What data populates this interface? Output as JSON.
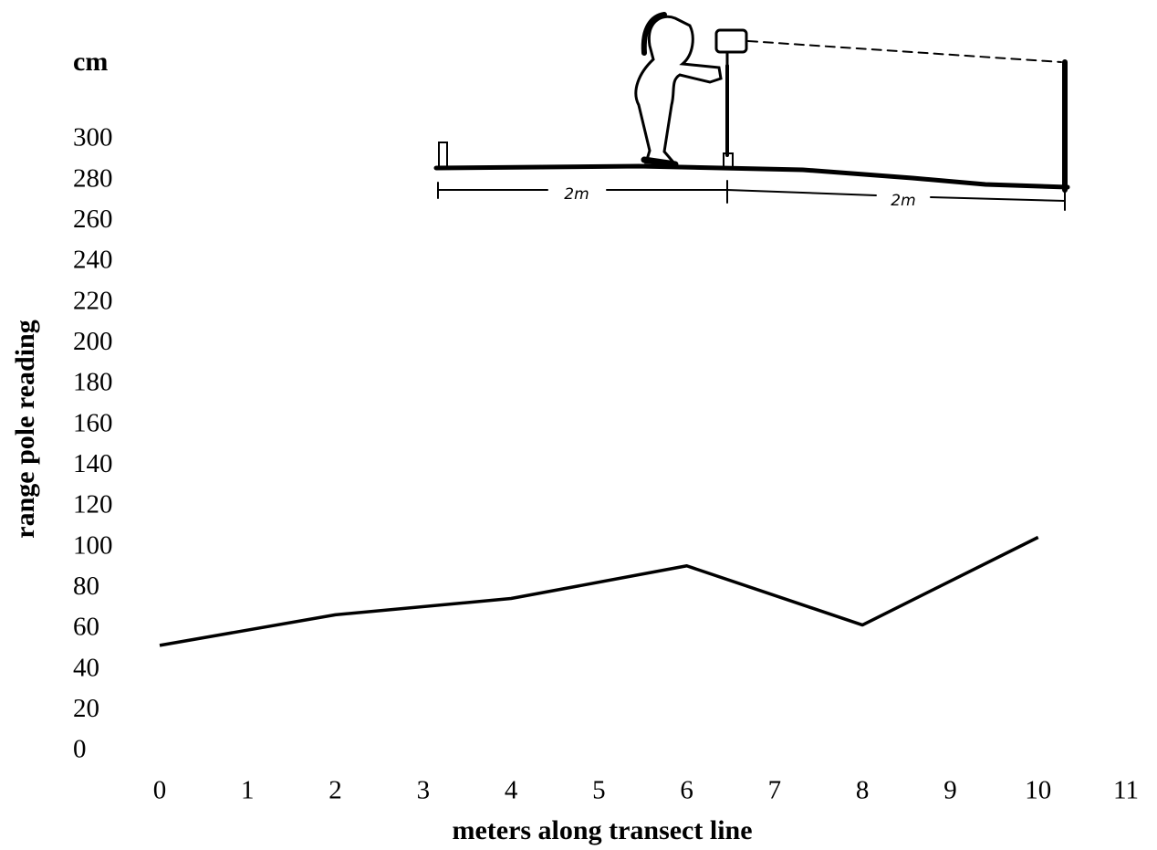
{
  "chart_data": {
    "type": "line",
    "title": "cm",
    "ylabel": "range pole reading",
    "xlabel": "meters along transect line",
    "x": [
      0,
      2,
      4,
      6,
      8,
      10
    ],
    "series": [
      {
        "values": [
          52,
          67,
          75,
          91,
          62,
          105
        ],
        "color": "#000000"
      }
    ],
    "xlim": [
      0,
      11
    ],
    "xticks": [
      0,
      1,
      2,
      3,
      4,
      5,
      6,
      7,
      8,
      9,
      10,
      11
    ],
    "ylim": [
      0,
      300
    ],
    "yticks": [
      0,
      20,
      40,
      60,
      80,
      100,
      120,
      140,
      160,
      180,
      200,
      220,
      240,
      260,
      280,
      300
    ],
    "grid": false,
    "annotations": [
      "2m",
      "2m"
    ]
  }
}
